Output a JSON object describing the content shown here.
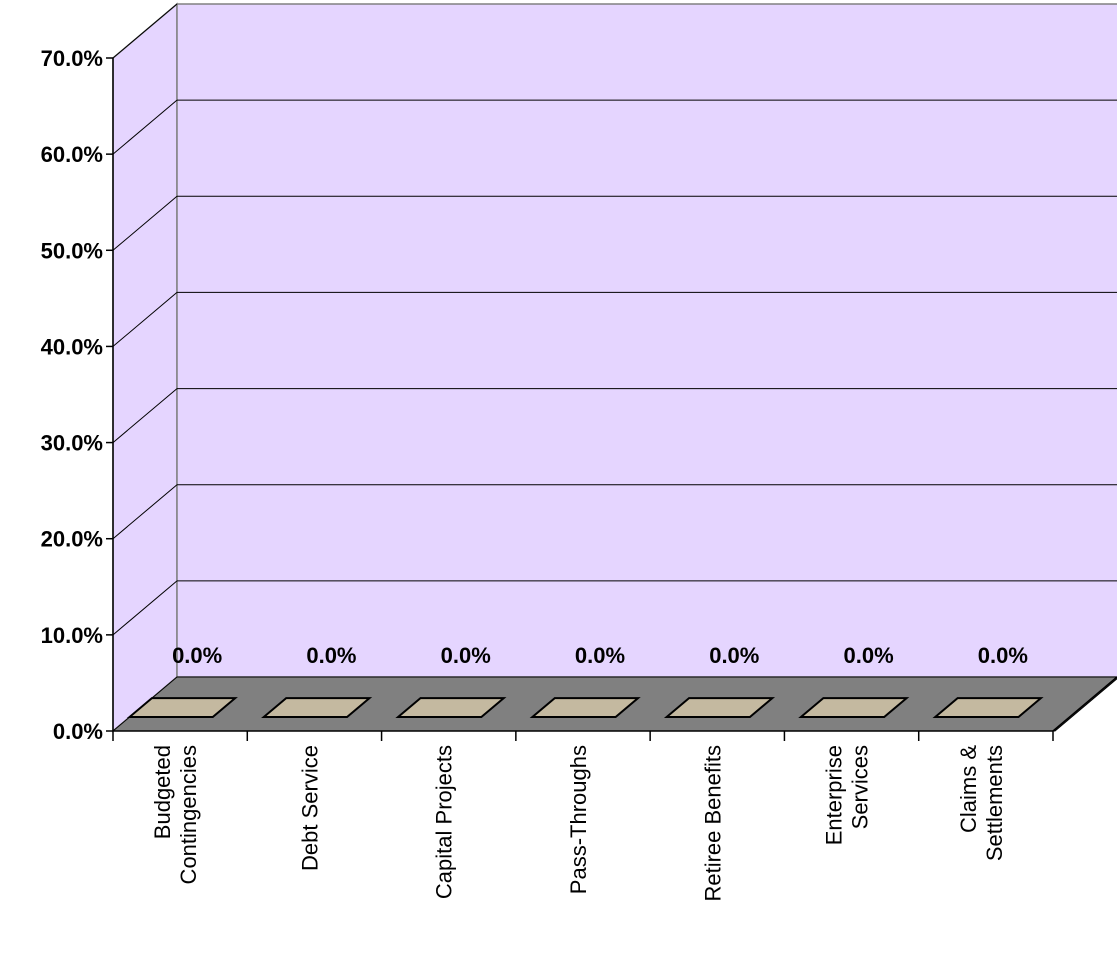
{
  "chart_data": {
    "type": "bar",
    "categories": [
      [
        "Budgeted",
        "Contingencies"
      ],
      [
        "Debt Service"
      ],
      [
        "Capital Projects"
      ],
      [
        "Pass-Throughs"
      ],
      [
        "Retiree Benefits"
      ],
      [
        "Enterprise",
        "Services"
      ],
      [
        "Claims &",
        "Settlements"
      ]
    ],
    "values": [
      0.0,
      0.0,
      0.0,
      0.0,
      0.0,
      0.0,
      0.0
    ],
    "data_labels": [
      "0.0%",
      "0.0%",
      "0.0%",
      "0.0%",
      "0.0%",
      "0.0%",
      "0.0%"
    ],
    "y_ticks": [
      "0.0%",
      "10.0%",
      "20.0%",
      "30.0%",
      "40.0%",
      "50.0%",
      "60.0%",
      "70.0%"
    ],
    "ylim": [
      0,
      70
    ],
    "grid": true,
    "three_d": true,
    "colors": {
      "wall": "#E5D5FF",
      "floor": "#808080",
      "bar_top": "#C4B9A0",
      "line": "#000000"
    }
  }
}
